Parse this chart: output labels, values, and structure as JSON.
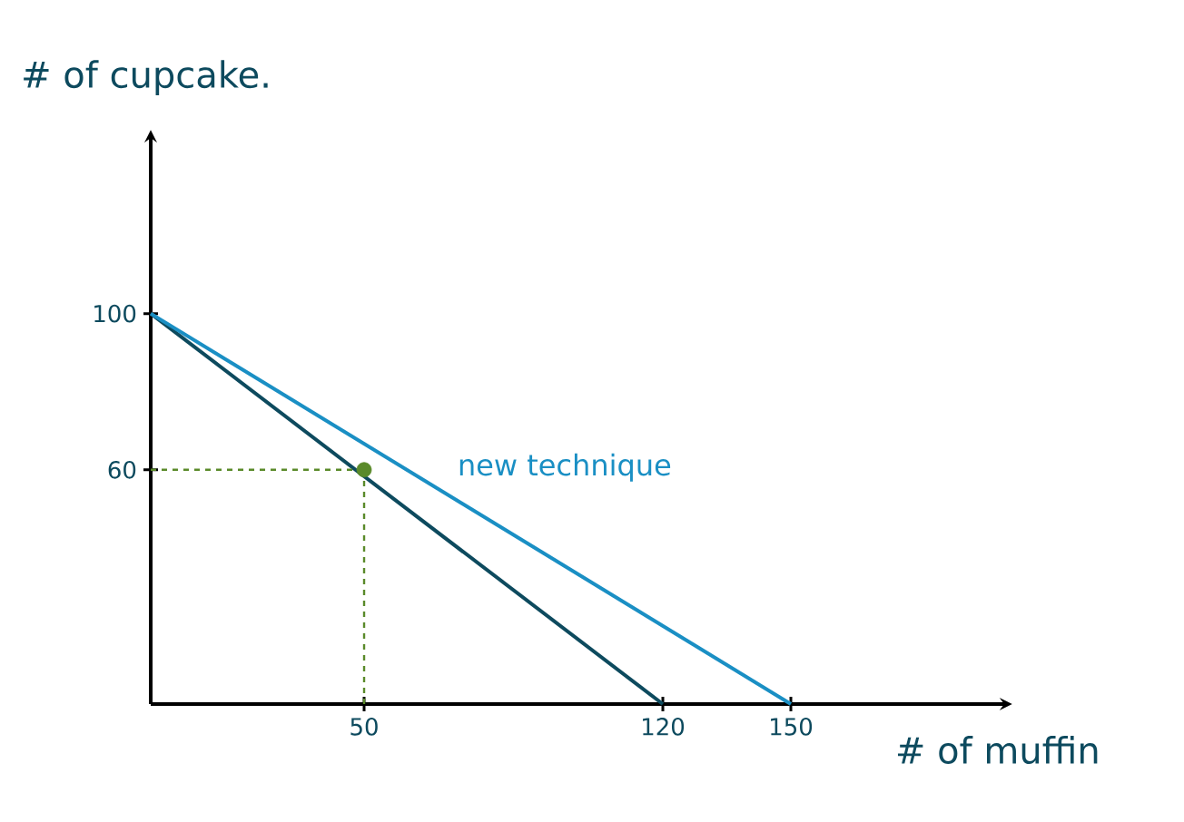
{
  "chart_data": {
    "type": "line",
    "xlabel": "# of muffin",
    "ylabel": "# of cupcake.",
    "xlim": [
      0,
      200
    ],
    "ylim": [
      0,
      145
    ],
    "xticks": [
      50,
      120,
      150
    ],
    "yticks": [
      60,
      100
    ],
    "series": [
      {
        "color": "#0d4a5e",
        "x": [
          0,
          120
        ],
        "values": [
          100,
          0
        ]
      },
      {
        "name": "new technique",
        "color": "#1a8fc4",
        "x": [
          0,
          150
        ],
        "values": [
          100,
          0
        ]
      },
      {
        "color": "#5a8a2a",
        "line_style": "dashed",
        "x": [
          0,
          50
        ],
        "values": [
          60,
          60
        ]
      },
      {
        "color": "#5a8a2a",
        "line_style": "dashed",
        "x": [
          50,
          50
        ],
        "values": [
          0,
          60
        ]
      },
      {
        "type": "scatter",
        "color": "#5a8a2a",
        "x": [
          50
        ],
        "values": [
          60
        ]
      }
    ]
  }
}
